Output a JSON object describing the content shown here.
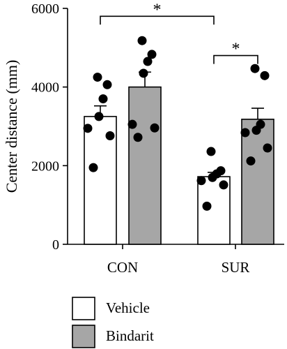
{
  "chart_data": {
    "type": "bar",
    "ylabel": "Center distance (mm)",
    "ylim": [
      0,
      6000
    ],
    "yticks": [
      0,
      2000,
      4000,
      6000
    ],
    "categories": [
      "CON",
      "SUR"
    ],
    "series": [
      {
        "name": "Vehicle",
        "color": "#ffffff",
        "values": [
          3250,
          1720
        ],
        "sem": [
          270,
          110
        ],
        "points": [
          [
            4250,
            4060,
            3700,
            3250,
            2950,
            2760,
            1950
          ],
          [
            2360,
            1870,
            1790,
            1700,
            1620,
            1510,
            970
          ]
        ]
      },
      {
        "name": "Bindarit",
        "color": "#a6a6a6",
        "values": [
          4000,
          3180
        ],
        "sem": [
          380,
          280
        ],
        "points": [
          [
            5180,
            4830,
            4650,
            4350,
            3050,
            2960,
            2720
          ],
          [
            4470,
            4290,
            3050,
            2900,
            2840,
            2450,
            2120
          ]
        ]
      }
    ],
    "annotations": [
      {
        "text": "*",
        "from": "CON-Vehicle",
        "to": "SUR-Vehicle",
        "y": 5800
      },
      {
        "text": "*",
        "from": "SUR-Vehicle",
        "to": "SUR-Bindarit",
        "y": 4800
      }
    ]
  }
}
